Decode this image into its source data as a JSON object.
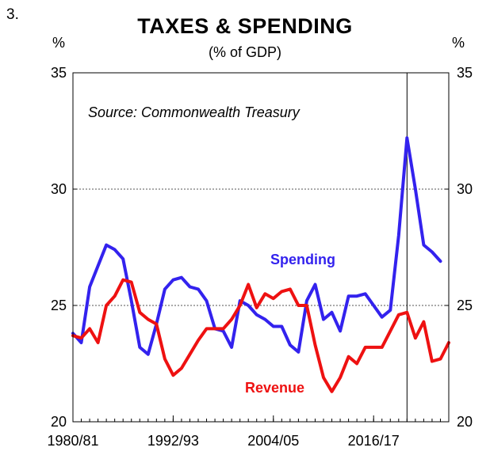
{
  "figure_number": "3.",
  "chart_data": {
    "type": "line",
    "title": "TAXES & SPENDING",
    "subtitle": "(% of GDP)",
    "unit_left": "%",
    "unit_right": "%",
    "source": "Source: Commonwealth Treasury",
    "ylim": [
      20,
      35
    ],
    "yticks": [
      20,
      25,
      30,
      35
    ],
    "grid": true,
    "x_tick_labels": [
      {
        "label": "1980/81",
        "year": 1980
      },
      {
        "label": "1992/93",
        "year": 1992
      },
      {
        "label": "2004/05",
        "year": 2004
      },
      {
        "label": "2016/17",
        "year": 2016
      }
    ],
    "vertical_marker_year": 2020,
    "x": [
      1980,
      1981,
      1982,
      1983,
      1984,
      1985,
      1986,
      1987,
      1988,
      1989,
      1990,
      1991,
      1992,
      1993,
      1994,
      1995,
      1996,
      1997,
      1998,
      1999,
      2000,
      2001,
      2002,
      2003,
      2004,
      2005,
      2006,
      2007,
      2008,
      2009,
      2010,
      2011,
      2012,
      2013,
      2014,
      2015,
      2016,
      2017,
      2018,
      2019,
      2020,
      2021,
      2022,
      2023,
      2024,
      2025
    ],
    "series": [
      {
        "name": "Spending",
        "color": "#3322ee",
        "values": [
          23.8,
          23.4,
          25.8,
          26.7,
          27.6,
          27.4,
          27.0,
          25.2,
          23.2,
          22.9,
          24.2,
          25.7,
          26.1,
          26.2,
          25.8,
          25.7,
          25.2,
          24.0,
          23.9,
          23.2,
          25.2,
          25.0,
          24.6,
          24.4,
          24.1,
          24.1,
          23.3,
          23.0,
          25.2,
          25.9,
          24.4,
          24.7,
          23.9,
          25.4,
          25.4,
          25.5,
          25.0,
          24.5,
          24.8,
          28.0,
          32.2,
          30.0,
          27.6,
          27.3,
          26.9,
          null
        ]
      },
      {
        "name": "Revenue",
        "color": "#ee1111",
        "values": [
          23.7,
          23.6,
          24.0,
          23.4,
          25.0,
          25.4,
          26.1,
          26.0,
          24.7,
          24.4,
          24.2,
          22.7,
          22.0,
          22.3,
          22.9,
          23.5,
          24.0,
          24.0,
          24.0,
          24.4,
          25.0,
          25.9,
          24.9,
          25.5,
          25.3,
          25.6,
          25.7,
          25.0,
          25.0,
          23.3,
          21.9,
          21.3,
          21.9,
          22.8,
          22.5,
          23.2,
          23.2,
          23.2,
          23.9,
          24.6,
          24.7,
          23.6,
          24.3,
          22.6,
          22.7,
          23.4
        ]
      }
    ]
  }
}
